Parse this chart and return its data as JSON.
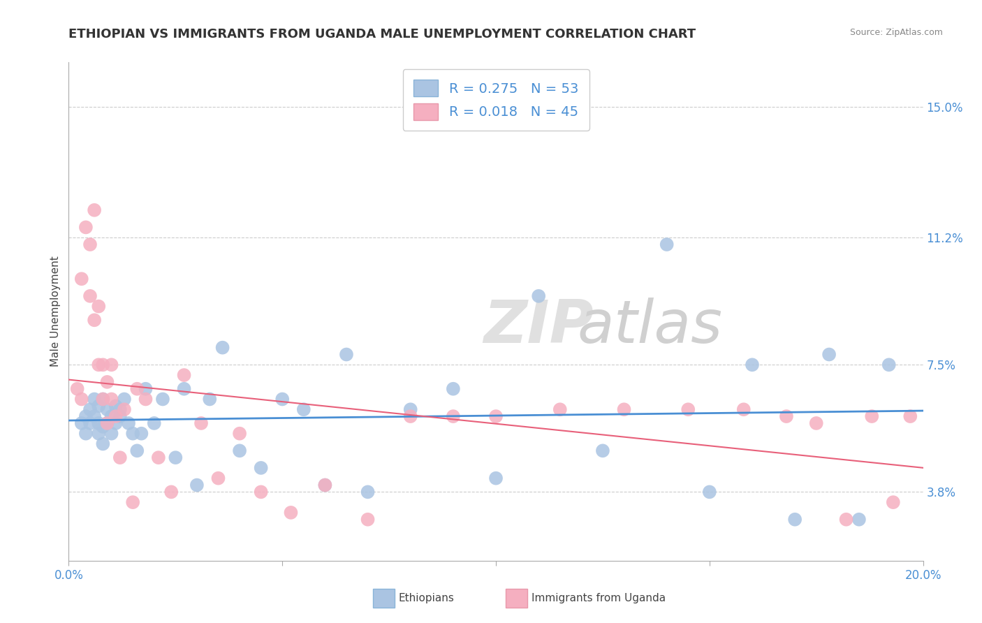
{
  "title": "ETHIOPIAN VS IMMIGRANTS FROM UGANDA MALE UNEMPLOYMENT CORRELATION CHART",
  "source": "Source: ZipAtlas.com",
  "ylabel": "Male Unemployment",
  "yticks": [
    0.038,
    0.075,
    0.112,
    0.15
  ],
  "ytick_labels": [
    "3.8%",
    "7.5%",
    "11.2%",
    "15.0%"
  ],
  "xlim": [
    0.0,
    0.2
  ],
  "ylim": [
    0.018,
    0.163
  ],
  "legend1_r": "R = 0.275",
  "legend1_n": "N = 53",
  "legend2_r": "R = 0.018",
  "legend2_n": "N = 45",
  "ethiopian_color": "#aac4e2",
  "uganda_color": "#f5afc0",
  "trend_blue": "#4a8fd4",
  "trend_red": "#e8607a",
  "bottom_label1": "Ethiopians",
  "bottom_label2": "Immigrants from Uganda",
  "ethiopian_x": [
    0.003,
    0.004,
    0.004,
    0.005,
    0.005,
    0.006,
    0.006,
    0.007,
    0.007,
    0.007,
    0.008,
    0.008,
    0.008,
    0.009,
    0.009,
    0.01,
    0.01,
    0.011,
    0.011,
    0.012,
    0.012,
    0.013,
    0.014,
    0.015,
    0.016,
    0.017,
    0.018,
    0.02,
    0.022,
    0.025,
    0.027,
    0.03,
    0.033,
    0.036,
    0.04,
    0.045,
    0.05,
    0.055,
    0.06,
    0.065,
    0.07,
    0.08,
    0.09,
    0.1,
    0.11,
    0.125,
    0.14,
    0.15,
    0.16,
    0.17,
    0.178,
    0.185,
    0.192
  ],
  "ethiopian_y": [
    0.058,
    0.06,
    0.055,
    0.062,
    0.058,
    0.06,
    0.065,
    0.055,
    0.058,
    0.063,
    0.052,
    0.057,
    0.065,
    0.058,
    0.062,
    0.055,
    0.06,
    0.058,
    0.063,
    0.06,
    0.062,
    0.065,
    0.058,
    0.055,
    0.05,
    0.055,
    0.068,
    0.058,
    0.065,
    0.048,
    0.068,
    0.04,
    0.065,
    0.08,
    0.05,
    0.045,
    0.065,
    0.062,
    0.04,
    0.078,
    0.038,
    0.062,
    0.068,
    0.042,
    0.095,
    0.05,
    0.11,
    0.038,
    0.075,
    0.03,
    0.078,
    0.03,
    0.075
  ],
  "uganda_x": [
    0.002,
    0.003,
    0.003,
    0.004,
    0.005,
    0.005,
    0.006,
    0.006,
    0.007,
    0.007,
    0.008,
    0.008,
    0.009,
    0.009,
    0.01,
    0.01,
    0.011,
    0.012,
    0.013,
    0.015,
    0.016,
    0.018,
    0.021,
    0.024,
    0.027,
    0.031,
    0.035,
    0.04,
    0.045,
    0.052,
    0.06,
    0.07,
    0.08,
    0.09,
    0.1,
    0.115,
    0.13,
    0.145,
    0.158,
    0.168,
    0.175,
    0.182,
    0.188,
    0.193,
    0.197
  ],
  "uganda_y": [
    0.068,
    0.065,
    0.1,
    0.115,
    0.11,
    0.095,
    0.12,
    0.088,
    0.075,
    0.092,
    0.065,
    0.075,
    0.07,
    0.058,
    0.075,
    0.065,
    0.06,
    0.048,
    0.062,
    0.035,
    0.068,
    0.065,
    0.048,
    0.038,
    0.072,
    0.058,
    0.042,
    0.055,
    0.038,
    0.032,
    0.04,
    0.03,
    0.06,
    0.06,
    0.06,
    0.062,
    0.062,
    0.062,
    0.062,
    0.06,
    0.058,
    0.03,
    0.06,
    0.035,
    0.06
  ]
}
